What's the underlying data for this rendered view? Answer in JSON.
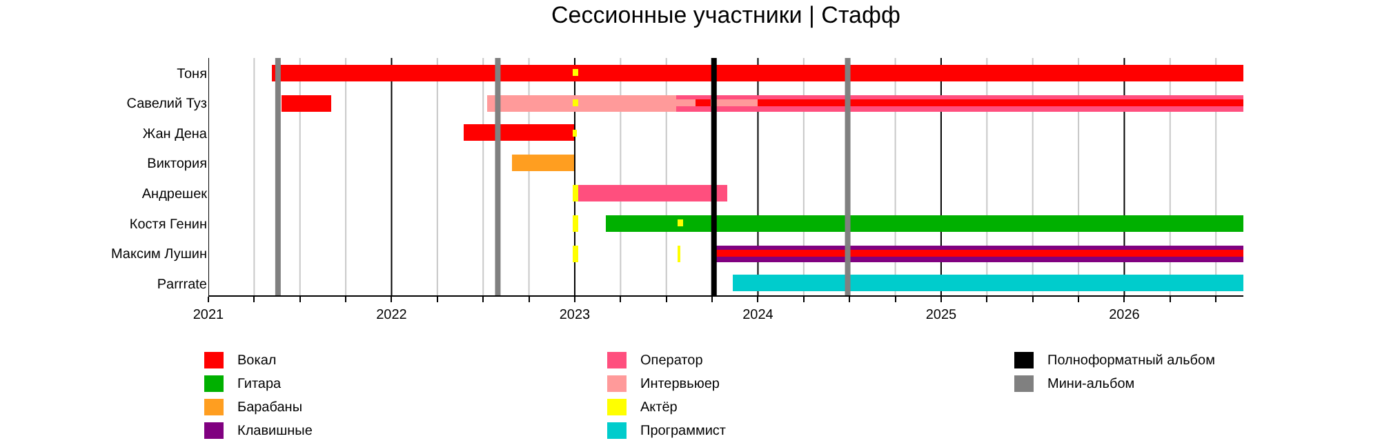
{
  "chart_data": {
    "type": "bar",
    "orientation": "horizontal",
    "title": "Сессионные участники | Стафф",
    "categories": [
      "Тоня",
      "Савелий Туз",
      "Жан Дена",
      "Виктория",
      "Андрешек",
      "Костя Генин",
      "Максим Лушин",
      "Parrrate"
    ],
    "xlim": [
      2021,
      2026.65
    ],
    "xticks": [
      2021,
      {
        "value": 2021.25,
        "label": null
      },
      {
        "value": 2021.5,
        "label": null
      },
      {
        "value": 2021.75,
        "label": null
      },
      2022,
      {
        "value": 2022.25,
        "label": null
      },
      {
        "value": 2022.5,
        "label": null
      },
      {
        "value": 2022.75,
        "label": null
      },
      2023,
      {
        "value": 2023.25,
        "label": null
      },
      {
        "value": 2023.5,
        "label": null
      },
      {
        "value": 2023.75,
        "label": null
      },
      2024,
      {
        "value": 2024.25,
        "label": null
      },
      {
        "value": 2024.5,
        "label": null
      },
      {
        "value": 2024.75,
        "label": null
      },
      2025,
      {
        "value": 2025.25,
        "label": null
      },
      {
        "value": 2025.5,
        "label": null
      },
      {
        "value": 2025.75,
        "label": null
      },
      2026,
      {
        "value": 2026.25,
        "label": null
      },
      {
        "value": 2026.5,
        "label": null
      }
    ],
    "grid": "x",
    "legend": "bottom",
    "series": [
      {
        "name": "Вокал",
        "color": "#ff0000",
        "base": [
          2021.35,
          2021.4,
          2022.39,
          null,
          null,
          null,
          null,
          null
        ],
        "values": [
          5.3,
          0.27,
          0.61,
          null,
          null,
          null,
          null,
          null
        ]
      },
      {
        "name": "Гитара",
        "color": "#00b000",
        "base": [
          null,
          null,
          null,
          null,
          null,
          2023.17,
          null,
          null
        ],
        "values": [
          null,
          null,
          null,
          null,
          null,
          3.48,
          null,
          null
        ]
      },
      {
        "name": "Барабаны",
        "color": "#ff9e20",
        "base": [
          null,
          null,
          null,
          2022.66,
          null,
          null,
          null,
          null
        ],
        "values": [
          null,
          null,
          null,
          0.34,
          null,
          null,
          null,
          null
        ]
      },
      {
        "name": "Клавишные",
        "color": "#800080",
        "base": [
          null,
          null,
          null,
          null,
          null,
          null,
          2023.77,
          null
        ],
        "values": [
          null,
          null,
          null,
          null,
          null,
          null,
          2.88,
          null
        ]
      },
      {
        "name": "Оператор",
        "color": "#ff4f7e",
        "base": [
          null,
          2023.55,
          null,
          null,
          2023.0,
          null,
          null,
          null
        ],
        "values": [
          null,
          3.1,
          null,
          null,
          0.83,
          null,
          null,
          null
        ]
      },
      {
        "name": "Интервьюер",
        "color": "#ff9a9a",
        "base": [
          null,
          2022.52,
          null,
          null,
          null,
          null,
          null,
          null
        ],
        "values": [
          null,
          1.03,
          null,
          null,
          null,
          null,
          null,
          null
        ]
      },
      {
        "name": "Актёр",
        "color": "#ffff00",
        "base": [
          null,
          null,
          null,
          null,
          2022.99,
          2022.99,
          2022.99,
          null
        ],
        "values": [
          null,
          null,
          null,
          null,
          0.03,
          0.03,
          0.03,
          null
        ]
      },
      {
        "name": "Программист",
        "color": "#00cccc",
        "base": [
          null,
          null,
          null,
          null,
          null,
          null,
          null,
          2023.86
        ],
        "values": [
          null,
          null,
          null,
          null,
          null,
          null,
          null,
          2.79
        ]
      },
      {
        "color": "#ff9a9a",
        "base": [
          null,
          2023.55,
          null,
          null,
          null,
          null,
          null,
          null
        ],
        "values": [
          null,
          0.45,
          null,
          null,
          null,
          null,
          null,
          null
        ]
      },
      {
        "color": "#ff0000",
        "base": [
          null,
          2024.0,
          null,
          null,
          null,
          null,
          2023.77,
          null
        ],
        "values": [
          null,
          2.65,
          null,
          null,
          null,
          null,
          2.88,
          null
        ]
      },
      {
        "color": "#ff0000",
        "base": [
          null,
          2023.66,
          null,
          null,
          null,
          null,
          null,
          null
        ],
        "values": [
          null,
          0.08,
          null,
          null,
          null,
          null,
          null,
          null
        ]
      },
      {
        "color": "#ffff00",
        "base": [
          2022.99,
          2022.99,
          2022.99,
          null,
          null,
          2023.56,
          null,
          null
        ],
        "values": [
          0.03,
          0.03,
          0.02,
          null,
          null,
          0.03,
          null,
          null
        ]
      },
      {
        "color": "#ffff00",
        "base": [
          null,
          null,
          null,
          null,
          null,
          null,
          2023.56,
          null
        ],
        "values": [
          null,
          null,
          null,
          null,
          null,
          null,
          0.02,
          null
        ]
      }
    ],
    "ref_lines": [
      {
        "axis": "x",
        "value": 2023.76,
        "label": "Полноформатный альбом",
        "color": "#000000"
      },
      {
        "axis": "x",
        "value": 2021.38,
        "label": "Мини-альбом",
        "color": "#808080"
      },
      {
        "axis": "x",
        "value": 2022.58,
        "label": null,
        "color": "#808080"
      },
      {
        "axis": "x",
        "value": 2024.49,
        "label": null,
        "color": "#808080"
      }
    ]
  }
}
